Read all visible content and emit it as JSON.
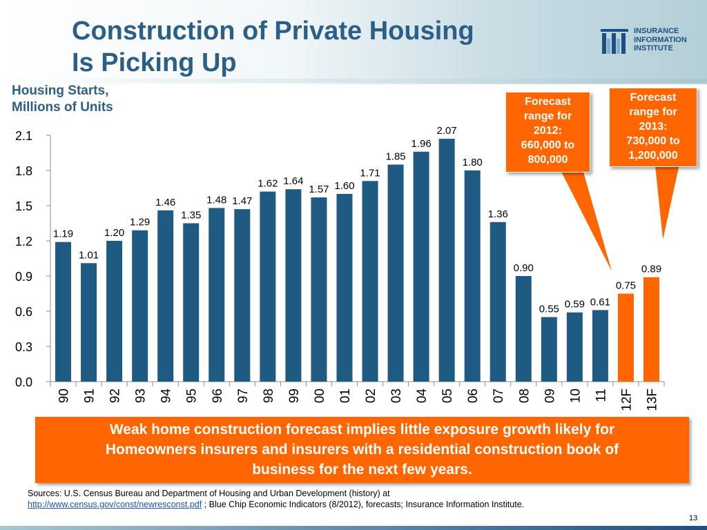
{
  "slide": {
    "title_lines": [
      "Construction of Private Housing",
      "Is Picking Up"
    ],
    "subtitle_lines": [
      "Housing Starts,",
      "Millions of Units"
    ],
    "logo_lines": [
      "INSURANCE",
      "INFORMATION",
      "INSTITUTE"
    ],
    "callout_2012_lines": [
      "Forecast",
      "range for",
      "2012:",
      "660,000 to",
      "800,000"
    ],
    "callout_2013_lines": [
      "Forecast",
      "range for",
      "2013:",
      "730,000 to",
      "1,200,000"
    ],
    "takeaway_lines": [
      "Weak home construction forecast implies little exposure growth likely for",
      "Homeowners insurers and insurers with a residential construction book of",
      "business for the next few years."
    ],
    "sources_prefix": "Sources: U.S. Census Bureau and Department of Housing and Urban Development (history) at",
    "sources_link": "http://www.census.gov/const/newresconst.pdf",
    "sources_suffix": " ; Blue Chip Economic Indicators (8/2012), forecasts; Insurance Information Institute.",
    "page_number": "13"
  },
  "colors": {
    "title": "#2b5f88",
    "history_bar": "#1f5a82",
    "forecast_bar": "#ff6600",
    "callout": "#ff6600",
    "logo": "#1f4f82"
  },
  "chart_data": {
    "type": "bar",
    "title": "",
    "xlabel": "",
    "ylabel": "Housing Starts, Millions of Units",
    "categories": [
      "90",
      "91",
      "92",
      "93",
      "94",
      "95",
      "96",
      "97",
      "98",
      "99",
      "00",
      "01",
      "02",
      "03",
      "04",
      "05",
      "06",
      "07",
      "08",
      "09",
      "10",
      "11",
      "12F",
      "13F"
    ],
    "series": [
      {
        "values": [
          1.19,
          1.01,
          1.2,
          1.29,
          1.46,
          1.35,
          1.48,
          1.47,
          1.62,
          1.64,
          1.57,
          1.6,
          1.71,
          1.85,
          1.96,
          2.07,
          1.8,
          1.36,
          0.9,
          0.55,
          0.59,
          0.61,
          0.75,
          0.89
        ],
        "labels": [
          "1.19",
          "1.01",
          "1.20",
          "1.29",
          "1.46",
          "1.35",
          "1.48",
          "1.47",
          "1.62",
          "1.64",
          "1.57",
          "1.60",
          "1.71",
          "1.85",
          "1.96",
          "2.07",
          "1.80",
          "1.36",
          "0.90",
          "0.55",
          "0.59",
          "0.61",
          "0.75",
          "0.89"
        ],
        "forecast": [
          false,
          false,
          false,
          false,
          false,
          false,
          false,
          false,
          false,
          false,
          false,
          false,
          false,
          false,
          false,
          false,
          false,
          false,
          false,
          false,
          false,
          false,
          true,
          true
        ]
      }
    ],
    "ylim": [
      0,
      2.1
    ],
    "yticks": [
      "0.0",
      "0.3",
      "0.6",
      "0.9",
      "1.2",
      "1.5",
      "1.8",
      "2.1"
    ],
    "grid": false,
    "legend": "none"
  }
}
